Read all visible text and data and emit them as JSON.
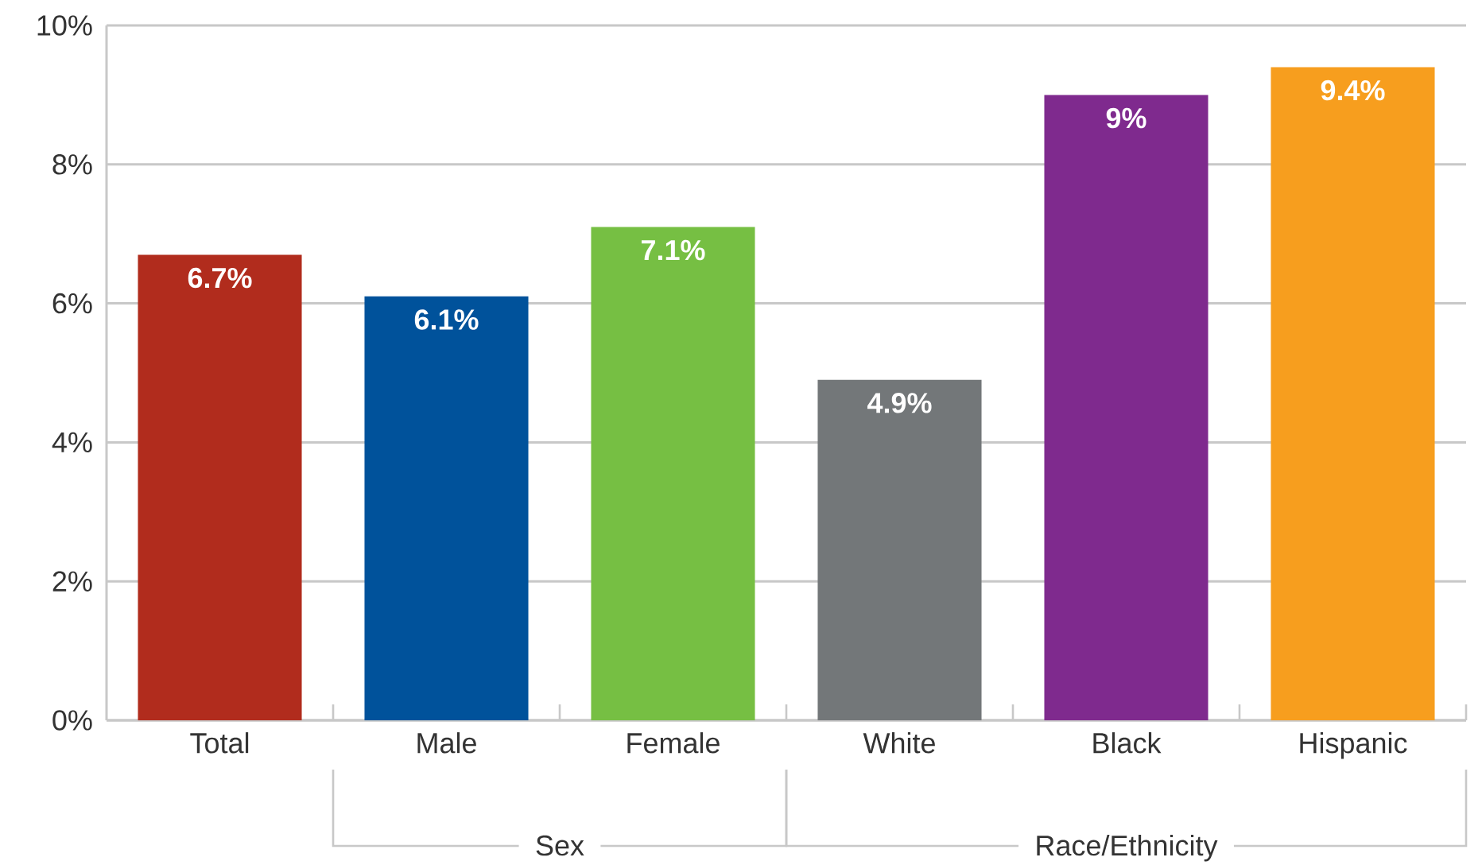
{
  "chart_data": {
    "type": "bar",
    "categories": [
      "Total",
      "Male",
      "Female",
      "White",
      "Black",
      "Hispanic"
    ],
    "values": [
      6.7,
      6.1,
      7.1,
      4.9,
      9,
      9.4
    ],
    "colors": [
      "#b12c1d",
      "#00529b",
      "#76bf43",
      "#737779",
      "#7f2a8e",
      "#f79e1e"
    ],
    "value_labels": [
      "6.7%",
      "6.1%",
      "7.1%",
      "4.9%",
      "9%",
      "9.4%"
    ],
    "ylim": [
      0,
      10
    ],
    "yticks": [
      {
        "value": 0,
        "label": "0%"
      },
      {
        "value": 2,
        "label": "2%"
      },
      {
        "value": 4,
        "label": "4%"
      },
      {
        "value": 6,
        "label": "6%"
      },
      {
        "value": 8,
        "label": "8%"
      },
      {
        "value": 10,
        "label": "10%"
      }
    ],
    "grid": "y",
    "annotations": [
      "Sex",
      "Race/Ethnicity"
    ]
  }
}
